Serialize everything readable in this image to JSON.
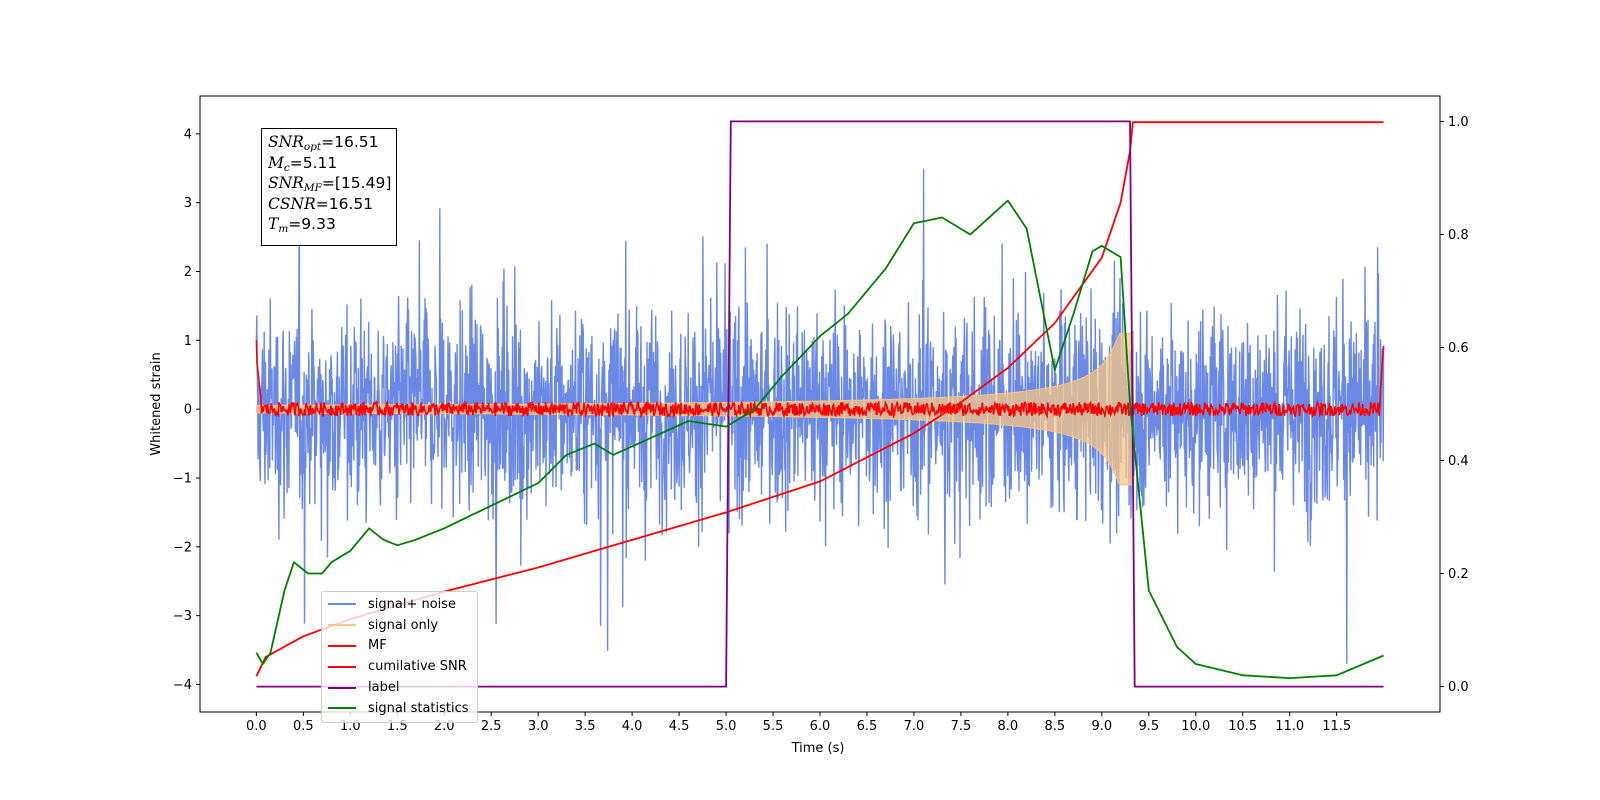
{
  "chart_data": {
    "type": "line",
    "xlabel": "Time (s)",
    "ylabel": "Whitened strain",
    "xlim": [
      -0.6,
      12.6
    ],
    "ylim": [
      -4.4,
      4.55
    ],
    "y2lim": [
      -0.045,
      1.045
    ],
    "xticks": [
      "0.0",
      "0.5",
      "1.0",
      "1.5",
      "2.0",
      "2.5",
      "3.0",
      "3.5",
      "4.0",
      "4.5",
      "5.0",
      "5.5",
      "6.0",
      "6.5",
      "7.0",
      "7.5",
      "8.0",
      "8.5",
      "9.0",
      "9.5",
      "10.0",
      "10.5",
      "11.0",
      "11.5"
    ],
    "yticks": [
      -4,
      -3,
      -2,
      -1,
      0,
      1,
      2,
      3,
      4
    ],
    "y2ticks": [
      "0.0",
      "0.2",
      "0.4",
      "0.6",
      "0.8",
      "1.0"
    ],
    "info": {
      "snr_opt_label": "SNR",
      "snr_opt_sub": "opt",
      "snr_opt_value": "=16.51",
      "mc_label": "M",
      "mc_sub": "c",
      "mc_value": "=5.11",
      "snr_mf_label": "SNR",
      "snr_mf_sub": "MF",
      "snr_mf_value": "=[15.49]",
      "csnr_label": "CSNR",
      "csnr_value": "=16.51",
      "tm_label": "T",
      "tm_sub": "m",
      "tm_value": "=9.33"
    },
    "series": [
      {
        "name": "signal+ noise",
        "color": "#6a88e6",
        "axis": "left",
        "t_start": 0.0,
        "t_end": 12.0,
        "band": [
          -2.3,
          2.3
        ]
      },
      {
        "name": "signal only",
        "color": "#f5c584",
        "axis": "left",
        "t_start": 0.0,
        "t_end": 9.33,
        "merger_time": 9.33
      },
      {
        "name": "MF",
        "color": "#ff0000",
        "axis": "left",
        "t_start": 0.0,
        "t_end": 12.0,
        "level": 0.0,
        "edge_value": 1.0
      },
      {
        "name": "cumilative SNR",
        "color": "#ff0000",
        "axis": "left",
        "x": [
          0.0,
          0.1,
          0.5,
          1.0,
          2.0,
          3.0,
          4.0,
          5.0,
          6.0,
          7.0,
          7.5,
          8.0,
          8.5,
          9.0,
          9.2,
          9.3,
          9.33,
          12.0
        ],
        "y": [
          -3.88,
          -3.6,
          -3.3,
          -3.05,
          -2.65,
          -2.3,
          -1.9,
          -1.5,
          -1.05,
          -0.35,
          0.1,
          0.6,
          1.25,
          2.2,
          3.0,
          3.75,
          4.17,
          4.17
        ]
      },
      {
        "name": "label",
        "color": "#800080",
        "axis": "right",
        "x": [
          0.0,
          5.0,
          5.05,
          9.3,
          9.35,
          12.0
        ],
        "y": [
          0.0,
          0.0,
          1.0,
          1.0,
          0.0,
          0.0
        ]
      },
      {
        "name": "signal statistics",
        "color": "#008000",
        "axis": "right",
        "x": [
          0.0,
          0.07,
          0.15,
          0.3,
          0.4,
          0.55,
          0.7,
          0.8,
          1.0,
          1.2,
          1.35,
          1.5,
          1.7,
          2.0,
          2.5,
          3.0,
          3.3,
          3.6,
          3.8,
          4.2,
          4.6,
          5.0,
          5.3,
          5.6,
          6.0,
          6.3,
          6.7,
          7.0,
          7.3,
          7.6,
          8.0,
          8.2,
          8.5,
          8.7,
          8.9,
          9.0,
          9.2,
          9.3,
          9.5,
          9.8,
          10.0,
          10.5,
          11.0,
          11.5,
          12.0
        ],
        "y": [
          0.06,
          0.04,
          0.06,
          0.17,
          0.22,
          0.2,
          0.2,
          0.22,
          0.24,
          0.28,
          0.26,
          0.25,
          0.26,
          0.28,
          0.32,
          0.36,
          0.41,
          0.43,
          0.41,
          0.44,
          0.47,
          0.46,
          0.49,
          0.55,
          0.62,
          0.66,
          0.74,
          0.82,
          0.83,
          0.8,
          0.86,
          0.81,
          0.56,
          0.66,
          0.77,
          0.78,
          0.76,
          0.5,
          0.17,
          0.07,
          0.04,
          0.02,
          0.015,
          0.02,
          0.055
        ]
      }
    ],
    "legend_location": "lower left"
  }
}
